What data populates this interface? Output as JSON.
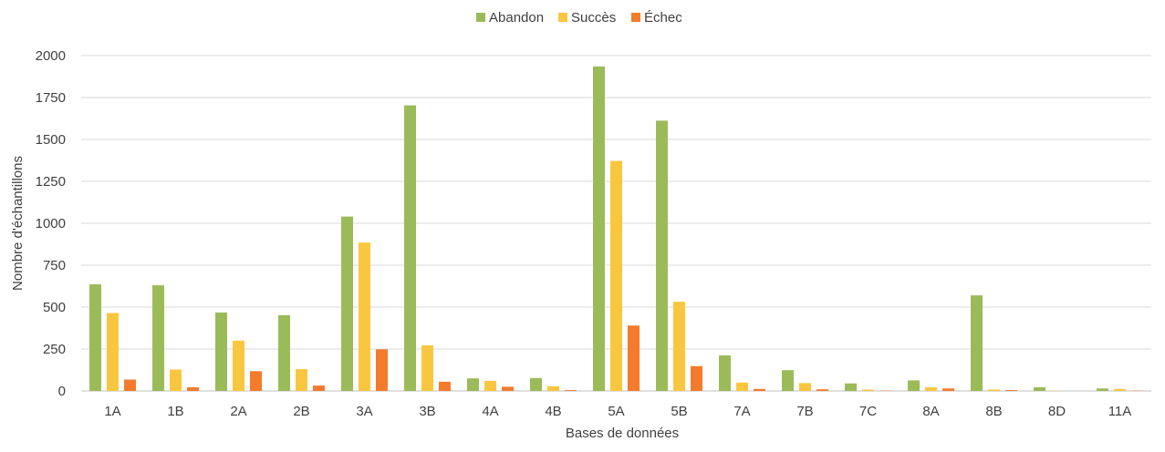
{
  "chart_data": {
    "type": "bar",
    "title": "",
    "xlabel": "Bases de données",
    "ylabel": "Nombre d'échantillons",
    "ylim": [
      0,
      2000
    ],
    "yticks": [
      0,
      250,
      500,
      750,
      1000,
      1250,
      1500,
      1750,
      2000
    ],
    "grid": true,
    "legend_position": "top",
    "categories": [
      "1A",
      "1B",
      "2A",
      "2B",
      "3A",
      "3B",
      "4A",
      "4B",
      "5A",
      "5B",
      "7A",
      "7B",
      "7C",
      "8A",
      "8B",
      "8D",
      "11A"
    ],
    "series": [
      {
        "name": "Abandon",
        "color": "#9BBB59",
        "values": [
          636,
          630,
          468,
          452,
          1040,
          1703,
          75,
          77,
          1935,
          1612,
          212,
          124,
          45,
          63,
          570,
          22,
          15
        ]
      },
      {
        "name": "Succès",
        "color": "#F9C73F",
        "values": [
          465,
          128,
          300,
          130,
          885,
          272,
          60,
          28,
          1372,
          532,
          50,
          47,
          8,
          22,
          8,
          2,
          12
        ]
      },
      {
        "name": "Échec",
        "color": "#F47B2C",
        "values": [
          68,
          22,
          118,
          32,
          248,
          55,
          25,
          5,
          390,
          148,
          12,
          10,
          2,
          15,
          5,
          0,
          2
        ]
      }
    ]
  }
}
